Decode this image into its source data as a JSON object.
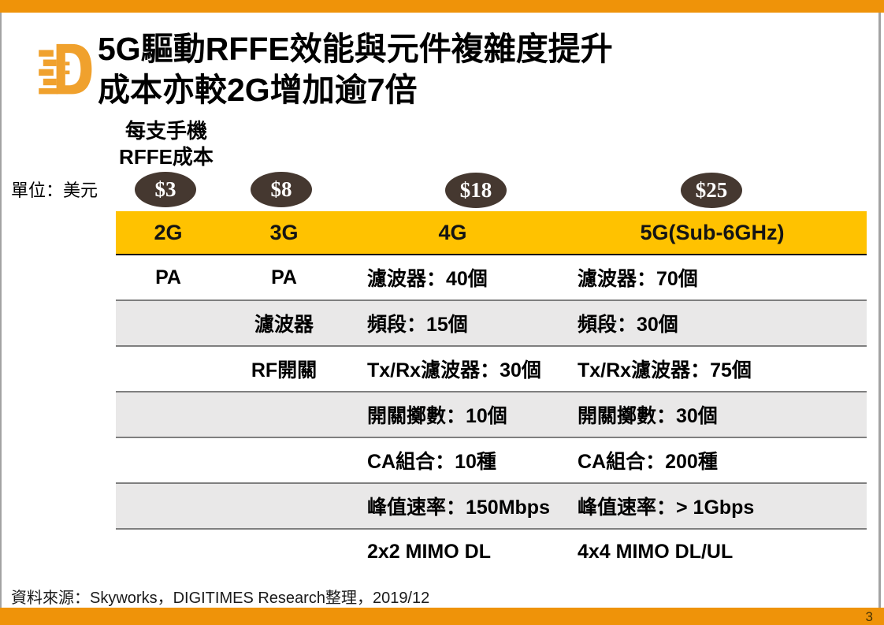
{
  "page": {
    "title_line1": "5G驅動RFFE效能與元件複雜度提升",
    "title_line2": "成本亦較2G增加逾7倍",
    "cost_label_line1": "每支手機",
    "cost_label_line2": "RFFE成本",
    "unit_label": "單位：美元",
    "source": "資料來源：Skyworks，DIGITIMES Research整理，2019/12",
    "page_number": "3",
    "logo": "DIGITIMES"
  },
  "badges": [
    {
      "label": "$3"
    },
    {
      "label": "$8"
    },
    {
      "label": "$18"
    },
    {
      "label": "$25"
    }
  ],
  "table": {
    "columns": [
      "2G",
      "3G",
      "4G",
      "5G(Sub-6GHz)"
    ],
    "rows": [
      {
        "cells": [
          "PA",
          "PA",
          "濾波器：40個",
          "濾波器：70個"
        ]
      },
      {
        "cells": [
          "",
          "濾波器",
          "頻段：15個",
          "頻段：30個"
        ]
      },
      {
        "cells": [
          "",
          "RF開關",
          "Tx/Rx濾波器：30個",
          "Tx/Rx濾波器：75個"
        ]
      },
      {
        "cells": [
          "",
          "",
          "開關擲數：10個",
          "開關擲數：30個"
        ]
      },
      {
        "cells": [
          "",
          "",
          "CA組合：10種",
          "CA組合：200種"
        ]
      },
      {
        "cells": [
          "",
          "",
          "峰值速率：150Mbps",
          "峰值速率：> 1Gbps"
        ]
      },
      {
        "cells": [
          "",
          "",
          "2x2 MIMO DL",
          "4x4 MIMO DL/UL"
        ]
      }
    ]
  },
  "colors": {
    "accent_orange": "#EF9309",
    "logo_orange": "#F0A12D",
    "header_gold": "#FFC200",
    "row_alt_gray": "#E9E8E8",
    "badge_brown": "#453830"
  }
}
